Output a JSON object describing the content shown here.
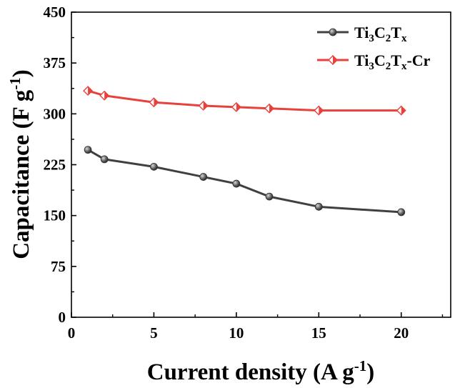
{
  "chart_data": {
    "type": "line",
    "xlabel": "Current density (A g-1)",
    "ylabel": "Capacitance (F g-1)",
    "xlabel_parts": {
      "main": "Current density (A g",
      "sup": "-1",
      "end": ")"
    },
    "ylabel_parts": {
      "main": "Capacitance (F g",
      "sup": "-1",
      "end": ")"
    },
    "xlim": [
      0,
      23
    ],
    "ylim": [
      0,
      450
    ],
    "xticks": [
      "0",
      "5",
      "10",
      "15",
      "20"
    ],
    "yticks": [
      "0",
      "75",
      "150",
      "225",
      "300",
      "375",
      "450"
    ],
    "grid": false,
    "legend_position": "top-right",
    "series": [
      {
        "name": "Ti3C2Tx",
        "name_parts": [
          [
            "Ti",
            ""
          ],
          [
            "3",
            "sub"
          ],
          [
            "C",
            ""
          ],
          [
            "2",
            "sub"
          ],
          [
            "T",
            ""
          ],
          [
            "x",
            "sub"
          ]
        ],
        "color": "#404040",
        "marker": "sphere",
        "x": [
          1,
          2,
          5,
          8,
          10,
          12,
          15,
          20
        ],
        "y": [
          247,
          233,
          222,
          207,
          197,
          178,
          163,
          155
        ]
      },
      {
        "name": "Ti3C2Tx-Cr",
        "name_parts": [
          [
            "Ti",
            ""
          ],
          [
            "3",
            "sub"
          ],
          [
            "C",
            ""
          ],
          [
            "2",
            "sub"
          ],
          [
            "T",
            ""
          ],
          [
            "x",
            "sub"
          ],
          [
            "-Cr",
            ""
          ]
        ],
        "color": "#e8413c",
        "marker": "diamond",
        "x": [
          1,
          2,
          5,
          8,
          10,
          12,
          15,
          20
        ],
        "y": [
          334,
          327,
          317,
          312,
          310,
          308,
          305,
          305
        ]
      }
    ]
  }
}
